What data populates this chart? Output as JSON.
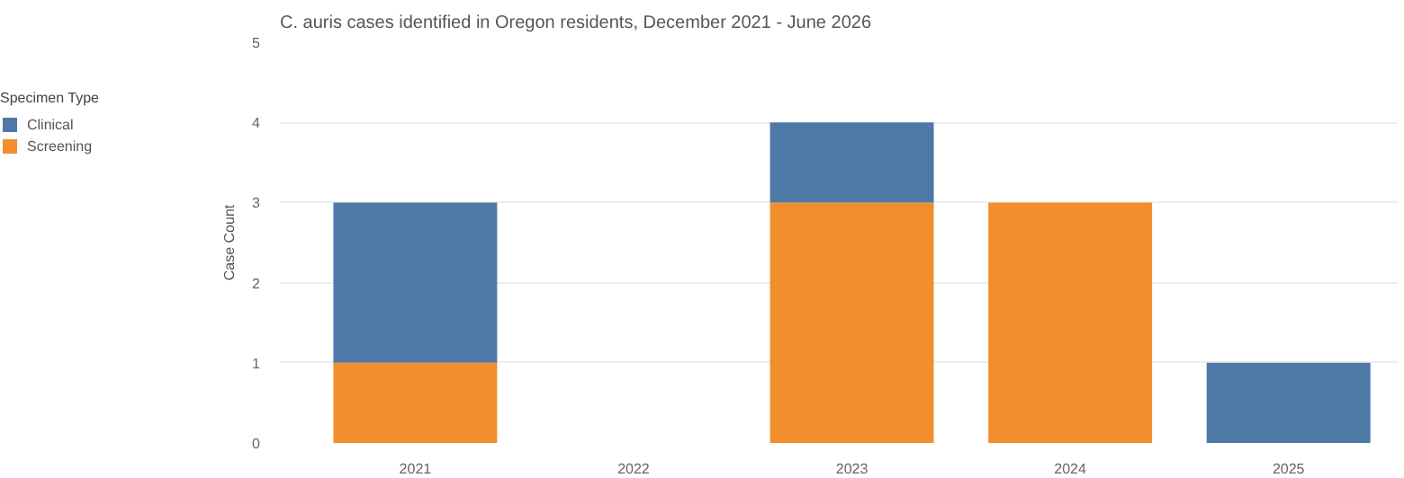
{
  "chart_data": {
    "type": "bar",
    "title": "C. auris cases identified in Oregon residents, December 2021 - June 2026",
    "categories": [
      "2021",
      "2022",
      "2023",
      "2024",
      "2025"
    ],
    "series": [
      {
        "name": "Screening",
        "color": "#f28e2b",
        "values": [
          1,
          0,
          3,
          3,
          0
        ]
      },
      {
        "name": "Clinical",
        "color": "#4e79a7",
        "values": [
          2,
          0,
          1,
          0,
          1
        ]
      }
    ],
    "stacked": true,
    "ylabel": "Case Count",
    "legend_title": "Specimen Type",
    "ylim": [
      0,
      5
    ],
    "yticks": [
      0,
      1,
      2,
      3,
      4,
      5
    ],
    "grid": "y",
    "legend": "left"
  }
}
